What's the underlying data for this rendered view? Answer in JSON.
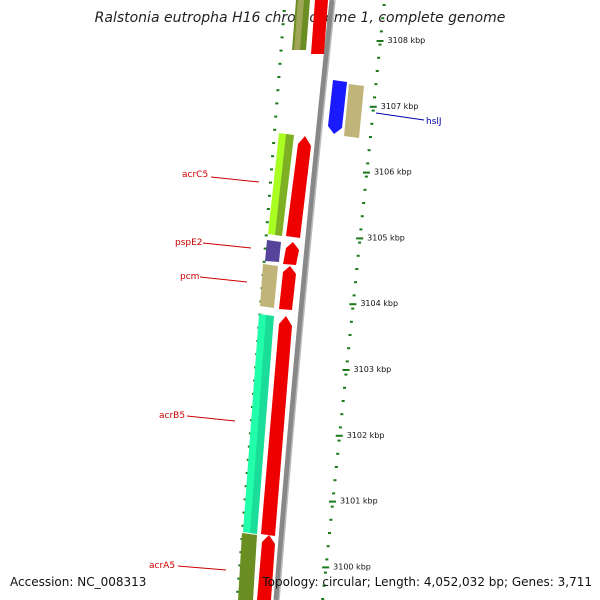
{
  "title": "Ralstonia eutropha H16 chromosome 1, complete genome",
  "footer": {
    "accession": "Accession: NC_008313",
    "topology": "Topology: circular; Length: 4,052,032 bp; Genes: 3,711"
  },
  "colors": {
    "backbone": "#888888",
    "ticks": "#1a7a1a",
    "cds_reverse": "#ee0000",
    "acrC5": "#aaff22",
    "pspE2": "#554499",
    "pcm": "#c0b478",
    "acrB5": "#22ffaa",
    "acrA5": "#6b8e23",
    "hslJ_box": "#1a1aff",
    "hslJ_neighbor": "#c0b478",
    "label_red": "#cc0000",
    "label_blue": "#0000aa"
  },
  "ticks": [
    {
      "label": "3108 kbp"
    },
    {
      "label": "3107 kbp"
    },
    {
      "label": "3106 kbp"
    },
    {
      "label": "3105 kbp"
    },
    {
      "label": "3104 kbp"
    },
    {
      "label": "3103 kbp"
    },
    {
      "label": "3102 kbp"
    },
    {
      "label": "3101 kbp"
    },
    {
      "label": "3100 kbp"
    }
  ],
  "genes": {
    "acrC5": "acrC5",
    "pspE2": "pspE2",
    "pcm": "pcm",
    "acrB5": "acrB5",
    "acrA5": "acrA5",
    "hslJ": "hslJ"
  }
}
